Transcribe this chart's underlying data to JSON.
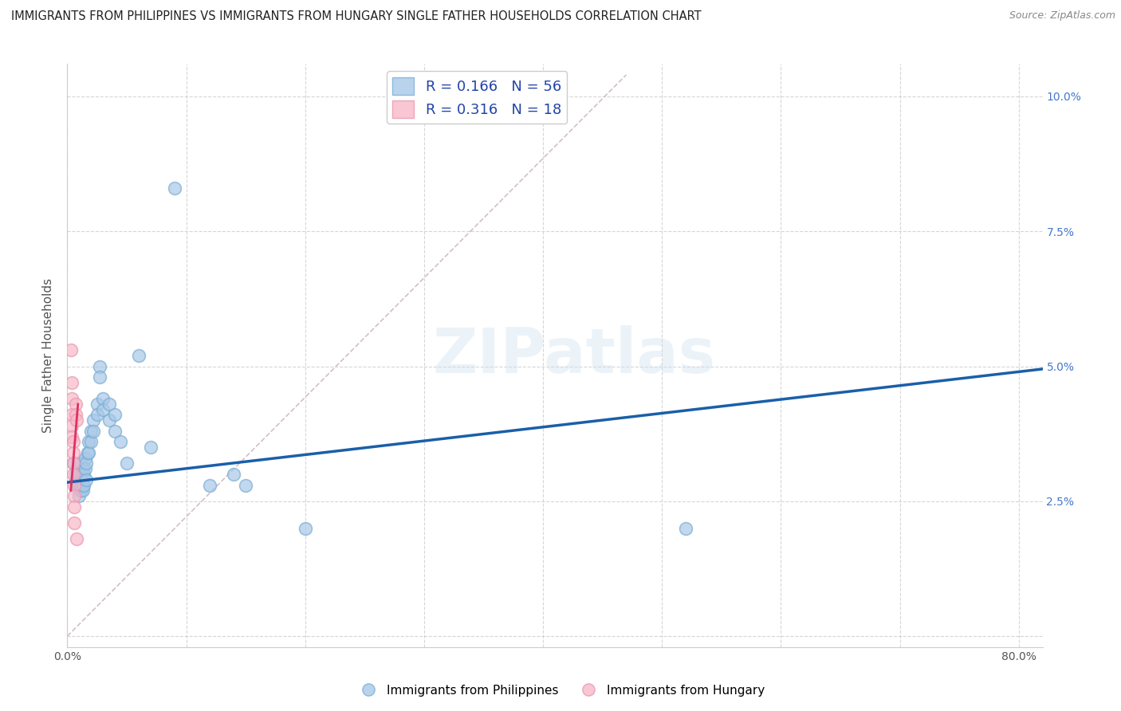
{
  "title": "IMMIGRANTS FROM PHILIPPINES VS IMMIGRANTS FROM HUNGARY SINGLE FATHER HOUSEHOLDS CORRELATION CHART",
  "source": "Source: ZipAtlas.com",
  "ylabel": "Single Father Households",
  "bg_color": "#ffffff",
  "grid_color": "#cccccc",
  "watermark_text": "ZIPatlas",
  "legend_R1": "R = 0.166",
  "legend_N1": "N = 56",
  "legend_R2": "R = 0.316",
  "legend_N2": "N = 18",
  "blue_color": "#a8c8e8",
  "blue_edge_color": "#7aadd4",
  "pink_color": "#f8b8c8",
  "pink_edge_color": "#e898b0",
  "blue_line_color": "#1a5fa8",
  "pink_line_color": "#e03060",
  "diag_line_color": "#d0c0c8",
  "xlim": [
    0.0,
    0.82
  ],
  "ylim": [
    -0.002,
    0.106
  ],
  "blue_scatter": [
    [
      0.005,
      0.032
    ],
    [
      0.007,
      0.03
    ],
    [
      0.007,
      0.029
    ],
    [
      0.008,
      0.031
    ],
    [
      0.008,
      0.029
    ],
    [
      0.008,
      0.028
    ],
    [
      0.009,
      0.03
    ],
    [
      0.009,
      0.029
    ],
    [
      0.009,
      0.028
    ],
    [
      0.01,
      0.031
    ],
    [
      0.01,
      0.03
    ],
    [
      0.01,
      0.028
    ],
    [
      0.01,
      0.027
    ],
    [
      0.01,
      0.026
    ],
    [
      0.011,
      0.032
    ],
    [
      0.011,
      0.029
    ],
    [
      0.011,
      0.028
    ],
    [
      0.012,
      0.03
    ],
    [
      0.012,
      0.029
    ],
    [
      0.012,
      0.027
    ],
    [
      0.013,
      0.031
    ],
    [
      0.013,
      0.028
    ],
    [
      0.013,
      0.027
    ],
    [
      0.014,
      0.03
    ],
    [
      0.014,
      0.028
    ],
    [
      0.015,
      0.033
    ],
    [
      0.015,
      0.031
    ],
    [
      0.016,
      0.032
    ],
    [
      0.016,
      0.029
    ],
    [
      0.017,
      0.034
    ],
    [
      0.018,
      0.036
    ],
    [
      0.018,
      0.034
    ],
    [
      0.02,
      0.038
    ],
    [
      0.02,
      0.036
    ],
    [
      0.022,
      0.04
    ],
    [
      0.022,
      0.038
    ],
    [
      0.025,
      0.043
    ],
    [
      0.025,
      0.041
    ],
    [
      0.027,
      0.05
    ],
    [
      0.027,
      0.048
    ],
    [
      0.03,
      0.044
    ],
    [
      0.03,
      0.042
    ],
    [
      0.035,
      0.043
    ],
    [
      0.035,
      0.04
    ],
    [
      0.04,
      0.041
    ],
    [
      0.04,
      0.038
    ],
    [
      0.045,
      0.036
    ],
    [
      0.05,
      0.032
    ],
    [
      0.06,
      0.052
    ],
    [
      0.07,
      0.035
    ],
    [
      0.12,
      0.028
    ],
    [
      0.14,
      0.03
    ],
    [
      0.15,
      0.028
    ],
    [
      0.2,
      0.02
    ],
    [
      0.52,
      0.02
    ],
    [
      0.09,
      0.083
    ]
  ],
  "pink_scatter": [
    [
      0.003,
      0.053
    ],
    [
      0.004,
      0.047
    ],
    [
      0.004,
      0.044
    ],
    [
      0.004,
      0.041
    ],
    [
      0.004,
      0.039
    ],
    [
      0.004,
      0.037
    ],
    [
      0.005,
      0.036
    ],
    [
      0.005,
      0.034
    ],
    [
      0.005,
      0.032
    ],
    [
      0.005,
      0.03
    ],
    [
      0.006,
      0.028
    ],
    [
      0.006,
      0.026
    ],
    [
      0.006,
      0.024
    ],
    [
      0.006,
      0.021
    ],
    [
      0.007,
      0.043
    ],
    [
      0.007,
      0.041
    ],
    [
      0.008,
      0.04
    ],
    [
      0.008,
      0.018
    ]
  ],
  "blue_line_x": [
    0.0,
    0.82
  ],
  "blue_line_y": [
    0.0285,
    0.0495
  ],
  "pink_line_x": [
    0.003,
    0.009
  ],
  "pink_line_y": [
    0.027,
    0.043
  ],
  "diag_line_x": [
    0.0,
    0.47
  ],
  "diag_line_y": [
    0.0,
    0.104
  ]
}
